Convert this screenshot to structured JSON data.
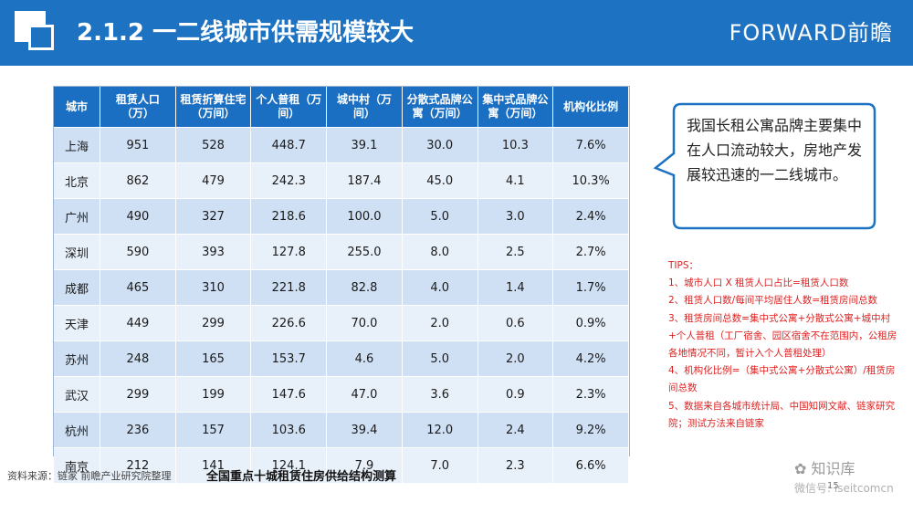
{
  "header": {
    "title": "2.1.2 一二线城市供需规模较大",
    "brand": "FORWARD前瞻"
  },
  "table": {
    "columns": [
      "城市",
      "租赁人口（万）",
      "租赁折算住宅（万间）",
      "个人普租（万间）",
      "城中村（万间）",
      "分散式品牌公寓（万间）",
      "集中式品牌公寓（万间）",
      "机构化比例"
    ],
    "rows": [
      [
        "上海",
        "951",
        "528",
        "448.7",
        "39.1",
        "30.0",
        "10.3",
        "7.6%"
      ],
      [
        "北京",
        "862",
        "479",
        "242.3",
        "187.4",
        "45.0",
        "4.1",
        "10.3%"
      ],
      [
        "广州",
        "490",
        "327",
        "218.6",
        "100.0",
        "5.0",
        "3.0",
        "2.4%"
      ],
      [
        "深圳",
        "590",
        "393",
        "127.8",
        "255.0",
        "8.0",
        "2.5",
        "2.7%"
      ],
      [
        "成都",
        "465",
        "310",
        "221.8",
        "82.8",
        "4.0",
        "1.4",
        "1.7%"
      ],
      [
        "天津",
        "449",
        "299",
        "226.6",
        "70.0",
        "2.0",
        "0.6",
        "0.9%"
      ],
      [
        "苏州",
        "248",
        "165",
        "153.7",
        "4.6",
        "5.0",
        "2.0",
        "4.2%"
      ],
      [
        "武汉",
        "299",
        "199",
        "147.6",
        "47.0",
        "3.6",
        "0.9",
        "2.3%"
      ],
      [
        "杭州",
        "236",
        "157",
        "103.6",
        "39.4",
        "12.0",
        "2.4",
        "9.2%"
      ],
      [
        "南京",
        "212",
        "141",
        "124.1",
        "7.9",
        "7.0",
        "2.3",
        "6.6%"
      ]
    ]
  },
  "callout": {
    "text": "我国长租公寓品牌主要集中在人口流动较大，房地产发展较迅速的一二线城市。"
  },
  "tips": {
    "title": "TIPS：",
    "items": [
      "1、城市人口 X 租赁人口占比=租赁人口数",
      "2、租赁人口数/每间平均居住人数=租赁房间总数",
      "3、租赁房间总数=集中式公寓+分散式公寓+城中村+个人普租（工厂宿舍、园区宿舍不在范围内，公租房各地情况不同，暂计入个人普租处理）",
      "4、机构化比例=（集中式公寓+分散式公寓）/租赁房间总数",
      "5、数据来自各城市统计局、中国知网文献、链家研究院；测试方法来自链家"
    ]
  },
  "footer": {
    "source": "资料来源：链家 前瞻产业研究院整理",
    "caption": "全国重点十城租赁住房供给结构测算",
    "watermark": "知识库",
    "watermark_sub": "微信号: iseitcomcn",
    "page": "15"
  },
  "colors": {
    "header_bg": "#1e72c2",
    "table_header": "#1b6fc2",
    "row_odd": "#cfe0f5",
    "row_even": "#e8f0fa",
    "tips": "#e02020"
  }
}
